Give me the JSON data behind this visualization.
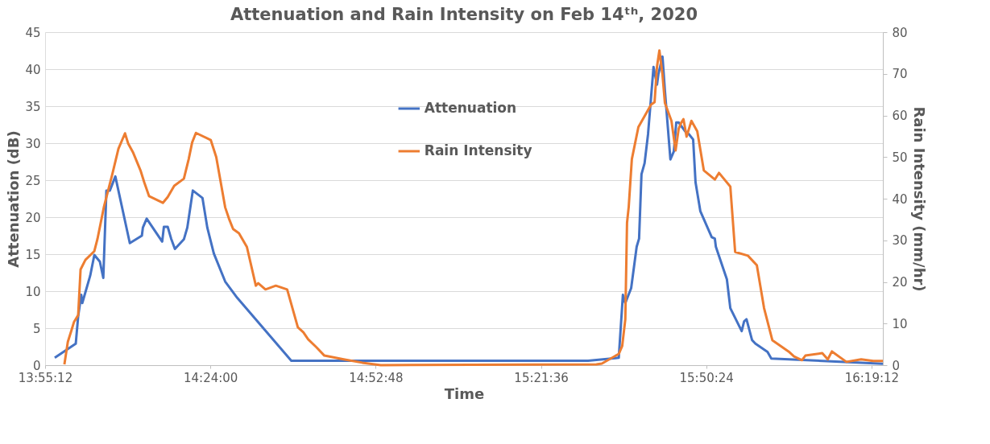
{
  "chart_data": {
    "type": "line",
    "title": "Attenuation and Rain Intensity on Feb 14ᵗʰ, 2020",
    "xlabel": "Time",
    "ylabel": "Attenuation (dB)",
    "y2label": "Rain Intensity (mm/hr)",
    "xlim": [
      13.92,
      16.353
    ],
    "xticks": [
      {
        "value": 13.92,
        "label": "13:55:12"
      },
      {
        "value": 14.4,
        "label": "14:24:00"
      },
      {
        "value": 14.88,
        "label": "14:52:48"
      },
      {
        "value": 15.36,
        "label": "15:21:36"
      },
      {
        "value": 15.84,
        "label": "15:50:24"
      },
      {
        "value": 16.32,
        "label": "16:19:12"
      }
    ],
    "ylim": [
      0,
      45
    ],
    "yticks": [
      0,
      5,
      10,
      15,
      20,
      25,
      30,
      35,
      40,
      45
    ],
    "y2lim": [
      0,
      80
    ],
    "y2ticks": [
      0,
      10,
      20,
      30,
      40,
      50,
      60,
      70,
      80
    ],
    "grid": "y",
    "legend": "top",
    "marker": "none",
    "line_style": "solid",
    "series": [
      {
        "name": "Attenuation",
        "color": "#4472c4",
        "axis": "y",
        "x": [
          13.948,
          14.009,
          14.016,
          14.025,
          14.028,
          14.051,
          14.063,
          14.079,
          14.089,
          14.098,
          14.108,
          14.124,
          14.166,
          14.201,
          14.204,
          14.215,
          14.26,
          14.265,
          14.276,
          14.286,
          14.297,
          14.323,
          14.333,
          14.349,
          14.377,
          14.391,
          14.41,
          14.443,
          14.478,
          14.635,
          15.497,
          15.586,
          15.598,
          15.605,
          15.622,
          15.638,
          15.645,
          15.652,
          15.661,
          15.671,
          15.687,
          15.697,
          15.701,
          15.713,
          15.72,
          15.736,
          15.746,
          15.753,
          15.76,
          15.779,
          15.79,
          15.802,
          15.809,
          15.823,
          15.856,
          15.865,
          15.868,
          15.9,
          15.91,
          15.943,
          15.95,
          15.957,
          15.973,
          15.983,
          16.018,
          16.029,
          16.353
        ],
        "values": [
          1.0,
          2.9,
          6.6,
          9.5,
          8.4,
          12.1,
          14.9,
          14.0,
          11.8,
          23.6,
          23.6,
          25.5,
          16.5,
          17.5,
          18.6,
          19.8,
          16.7,
          18.7,
          18.7,
          17.1,
          15.7,
          17.0,
          18.6,
          23.6,
          22.6,
          18.6,
          15.1,
          11.3,
          9.1,
          0.6,
          0.6,
          1.0,
          9.5,
          8.4,
          10.4,
          16.0,
          17.1,
          25.8,
          27.3,
          31.2,
          40.3,
          37.9,
          39.3,
          41.7,
          37.1,
          27.8,
          28.9,
          32.8,
          32.8,
          31.6,
          31.2,
          30.5,
          24.7,
          20.8,
          17.3,
          17.1,
          16.0,
          11.6,
          7.7,
          4.6,
          5.9,
          6.2,
          3.4,
          2.9,
          1.8,
          0.9,
          0.2
        ]
      },
      {
        "name": "Rain Intensity",
        "color": "#ed7d31",
        "axis": "y2",
        "x": [
          13.976,
          13.986,
          13.997,
          14.004,
          14.016,
          14.023,
          14.037,
          14.063,
          14.072,
          14.091,
          14.115,
          14.133,
          14.152,
          14.161,
          14.176,
          14.197,
          14.208,
          14.222,
          14.262,
          14.276,
          14.295,
          14.323,
          14.337,
          14.347,
          14.358,
          14.401,
          14.417,
          14.443,
          14.454,
          14.466,
          14.483,
          14.506,
          14.532,
          14.539,
          14.56,
          14.59,
          14.623,
          14.654,
          14.67,
          14.684,
          14.708,
          14.731,
          14.787,
          14.841,
          14.895,
          15.521,
          15.537,
          15.586,
          15.596,
          15.605,
          15.61,
          15.615,
          15.624,
          15.643,
          15.68,
          15.69,
          15.697,
          15.704,
          15.713,
          15.72,
          15.739,
          15.751,
          15.76,
          15.767,
          15.774,
          15.783,
          15.797,
          15.814,
          15.833,
          15.865,
          15.877,
          15.91,
          15.924,
          15.961,
          15.987,
          16.008,
          16.032,
          16.079,
          16.095,
          16.118,
          16.128,
          16.177,
          16.193,
          16.205,
          16.247,
          16.29,
          16.325,
          16.353
        ],
        "values": [
          0.2,
          5.6,
          8.5,
          10.4,
          12.0,
          23.0,
          25.3,
          27.4,
          30.3,
          38.1,
          45.8,
          52.0,
          55.7,
          53.3,
          51.0,
          46.8,
          43.9,
          40.6,
          39.0,
          40.4,
          43.1,
          44.8,
          49.5,
          53.5,
          55.8,
          54.1,
          50.0,
          37.9,
          35.2,
          32.7,
          31.7,
          28.4,
          19.1,
          19.7,
          18.2,
          19.1,
          18.2,
          9.1,
          7.9,
          6.2,
          4.3,
          2.3,
          1.4,
          0.6,
          0.0,
          0.2,
          0.4,
          2.7,
          4.6,
          11.0,
          34.2,
          38.1,
          49.5,
          57.2,
          62.6,
          63.2,
          71.7,
          75.6,
          69.8,
          63.0,
          58.7,
          51.6,
          56.8,
          58.2,
          59.1,
          54.9,
          58.7,
          56.2,
          46.8,
          44.6,
          46.2,
          42.9,
          27.2,
          26.3,
          24.0,
          13.7,
          6.0,
          3.3,
          2.1,
          1.2,
          2.3,
          2.9,
          1.4,
          3.3,
          0.8,
          1.4,
          1.0,
          1.0
        ]
      }
    ]
  }
}
